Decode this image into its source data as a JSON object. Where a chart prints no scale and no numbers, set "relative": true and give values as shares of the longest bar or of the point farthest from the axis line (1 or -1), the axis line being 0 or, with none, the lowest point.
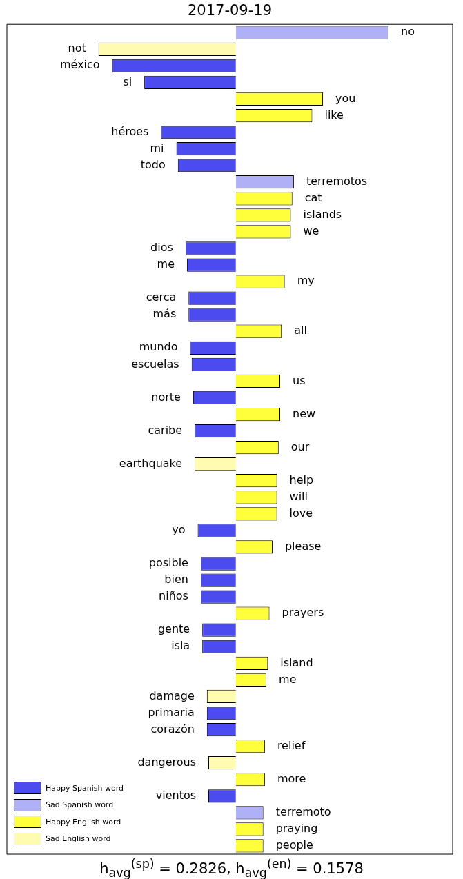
{
  "chart_data": {
    "type": "bar",
    "orientation": "horizontal",
    "stacked": true,
    "relative": true,
    "title": "2017-09-19",
    "legend": "bottom left",
    "categories": [
      "no",
      "not",
      "méxico",
      "si",
      "you",
      "like",
      "héroes",
      "mi",
      "todo",
      "terremotos",
      "cat",
      "islands",
      "we",
      "dios",
      "me",
      "my",
      "cerca",
      "más",
      "all",
      "mundo",
      "escuelas",
      "us",
      "norte",
      "new",
      "caribe",
      "our",
      "earthquake",
      "help",
      "will",
      "love",
      "yo",
      "please",
      "posible",
      "bien",
      "niños",
      "prayers",
      "gente",
      "isla",
      "island",
      "me",
      "damage",
      "primaria",
      "corazón",
      "relief",
      "dangerous",
      "more",
      "vientos",
      "terremoto",
      "praying",
      "people"
    ],
    "series": [
      {
        "name": "Happy Spanish word",
        "color": "#4b4bf0",
        "values": [
          null,
          null,
          -0.81,
          -0.6,
          null,
          null,
          -0.49,
          -0.39,
          -0.38,
          null,
          null,
          null,
          null,
          -0.33,
          -0.32,
          null,
          -0.31,
          -0.31,
          null,
          -0.3,
          -0.29,
          null,
          -0.28,
          null,
          -0.27,
          null,
          null,
          null,
          null,
          null,
          -0.25,
          null,
          -0.23,
          -0.23,
          -0.23,
          null,
          -0.22,
          -0.22,
          null,
          null,
          null,
          -0.19,
          -0.19,
          null,
          null,
          null,
          -0.18,
          null,
          null,
          null
        ]
      },
      {
        "name": "Sad Spanish word",
        "color": "#b0b0f7",
        "values": [
          1,
          null,
          null,
          null,
          null,
          null,
          null,
          null,
          null,
          0.38,
          null,
          null,
          null,
          null,
          null,
          null,
          null,
          null,
          null,
          null,
          null,
          null,
          null,
          null,
          null,
          null,
          null,
          null,
          null,
          null,
          null,
          null,
          null,
          null,
          null,
          null,
          null,
          null,
          null,
          null,
          null,
          null,
          null,
          null,
          null,
          null,
          null,
          0.18,
          null,
          null
        ]
      },
      {
        "name": "Happy English word",
        "color": "#ffff3c",
        "values": [
          null,
          null,
          null,
          null,
          0.57,
          0.5,
          null,
          null,
          null,
          null,
          0.37,
          0.36,
          0.36,
          null,
          null,
          0.32,
          null,
          null,
          0.3,
          null,
          null,
          0.29,
          null,
          0.29,
          null,
          0.28,
          null,
          0.27,
          0.27,
          0.27,
          null,
          0.24,
          null,
          null,
          null,
          0.22,
          null,
          null,
          0.21,
          0.2,
          null,
          null,
          null,
          0.19,
          null,
          0.19,
          null,
          null,
          0.18,
          0.18
        ]
      },
      {
        "name": "Sad English word",
        "color": "#fffbb0",
        "values": [
          null,
          -0.9,
          null,
          null,
          null,
          null,
          null,
          null,
          null,
          null,
          null,
          null,
          null,
          null,
          null,
          null,
          null,
          null,
          null,
          null,
          null,
          null,
          null,
          null,
          null,
          null,
          -0.27,
          null,
          null,
          null,
          null,
          null,
          null,
          null,
          null,
          null,
          null,
          null,
          null,
          null,
          -0.19,
          null,
          null,
          null,
          -0.18,
          null,
          null,
          null,
          null,
          null
        ]
      }
    ],
    "annotations": [
      "h$_{avg}$$^{(sp)}$ = 0.2826,  h$_{avg}$$^{(en)}$ = 0.1578"
    ]
  }
}
